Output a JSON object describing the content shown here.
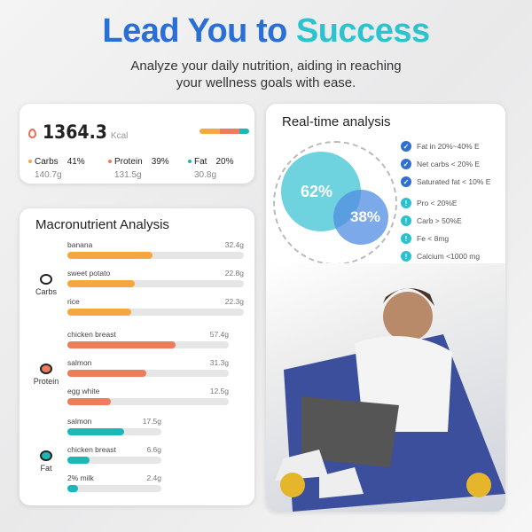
{
  "hero": {
    "title_a": "Lead You to ",
    "title_b": "Success",
    "subtitle_1": "Analyze your daily nutrition, aiding in reaching",
    "subtitle_2": "your wellness goals with ease."
  },
  "summary": {
    "kcal": "1364.3",
    "unit": "Kcal",
    "macros": [
      {
        "name": "Carbs",
        "pct": "41%",
        "grams": "140.7g",
        "color": "#f5a742"
      },
      {
        "name": "Protein",
        "pct": "39%",
        "grams": "131.5g",
        "color": "#f07a5c"
      },
      {
        "name": "Fat",
        "pct": "20%",
        "grams": "30.8g",
        "color": "#1cb8b8"
      }
    ]
  },
  "realtime": {
    "title": "Real-time analysis",
    "big": "62%",
    "small": "38%",
    "checks": [
      "Fat in 20%~40% E",
      "Net carbs < 20% E",
      "Saturated fat < 10% E"
    ],
    "warnings": [
      "Pro < 20%E",
      "Carb > 50%E",
      "Fe < 8mg",
      "Calcium <1000 mg"
    ],
    "more": "..."
  },
  "macro": {
    "title": "Macronutrient Analysis",
    "groups": [
      {
        "name": "Carbs",
        "color": "#f5a742",
        "items": [
          {
            "food": "banana",
            "value": "32.4g",
            "fill": 0.48
          },
          {
            "food": "sweet potato",
            "value": "22.8g",
            "fill": 0.38
          },
          {
            "food": "rice",
            "value": "22.3g",
            "fill": 0.36
          }
        ]
      },
      {
        "name": "Protein",
        "color": "#f07a5c",
        "items": [
          {
            "food": "chicken breast",
            "value": "57.4g",
            "fill": 0.67
          },
          {
            "food": "salmon",
            "value": "31.3g",
            "fill": 0.49
          },
          {
            "food": "egg white",
            "value": "12.5g",
            "fill": 0.27
          }
        ]
      },
      {
        "name": "Fat",
        "color": "#1cb8b8",
        "items": [
          {
            "food": "salmon",
            "value": "17.5g",
            "fill": 0.6
          },
          {
            "food": "chicken breast",
            "value": "6.6g",
            "fill": 0.24
          },
          {
            "food": "2% milk",
            "value": "2.4g",
            "fill": 0.11
          }
        ]
      }
    ]
  }
}
